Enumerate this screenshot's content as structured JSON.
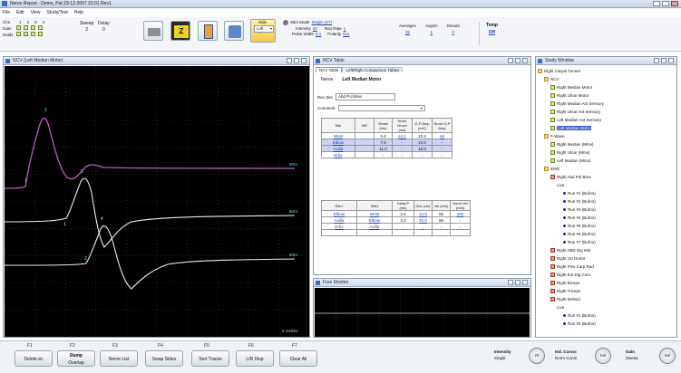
{
  "app": {
    "title": "Nerve Report - Demo, Pat 29-12-2007 22:01 Rev1"
  },
  "menu": [
    "File",
    "Edit",
    "View",
    "Study/Test",
    "Help"
  ],
  "top_controls": {
    "rows": [
      {
        "label": "Chn",
        "values": [
          "1",
          "2",
          "3",
          "4"
        ]
      },
      {
        "label": "Gain",
        "values": [
          "",
          "",
          "",
          ""
        ]
      },
      {
        "label": "Holds",
        "values": [
          "",
          "",
          "",
          ""
        ]
      }
    ],
    "sweep": {
      "label": "Sweep",
      "value": "2"
    },
    "delay": {
      "label": "Delay",
      "value": "0"
    },
    "side": {
      "label": "Side",
      "value": "Left"
    },
    "stim_mode": {
      "label": "Stim Mode",
      "value": "Single (ST)"
    },
    "intensity": {
      "label": "Intensity",
      "value": "20"
    },
    "pulse_width": {
      "label": "Pulse Width",
      "value": "0.1"
    },
    "rep_rate": {
      "label": "Rep Rate",
      "value": "1"
    },
    "polarity": {
      "label": "Polarity",
      "value": "Nor"
    },
    "averages": {
      "label": "Averages",
      "value": "32"
    },
    "avg_on": {
      "label": "AvgOn",
      "value": "1"
    },
    "should": {
      "label": "Should",
      "value": "0"
    },
    "temp": {
      "label": "Temp",
      "value": "Off"
    },
    "top_resize_btn": "Top Res"
  },
  "ncv_window": {
    "title": "NCV (Left Median Motor)",
    "traces": [
      {
        "label": "Wrist",
        "color": "#c05ac0"
      },
      {
        "label": "Elbow",
        "color": "#ffffff"
      },
      {
        "label": "Axilla",
        "color": "#ffffff"
      }
    ],
    "trace_labels_right": [
      "5mV",
      "5mV",
      "5mV"
    ],
    "marker_labels": [
      "1",
      "2",
      "3",
      "4"
    ],
    "timebase": "5 ms/Div",
    "colors": {
      "background": "#000000",
      "grid": "#3a3a3a",
      "wrist": "#c05ac0",
      "other": "#e8e8e8",
      "marker": "#66ffcc"
    }
  },
  "ncv_table": {
    "title": "NCV Table",
    "tabs": [
      "NCV Table",
      "Left/Right Comparison Tables"
    ],
    "nerve_label": "Nerve",
    "nerve_value": "Left Median Motor",
    "rec_site_label": "Rec Site",
    "rec_site_value": "Abd Pol Brev",
    "comment_label": "Comment",
    "comment_value": "",
    "table1": {
      "headers": [
        "Site",
        "NR",
        "Onset (ms)",
        "Norm Onset (ms)",
        "O-P Amp (mV)",
        "Norm O-P Amp"
      ],
      "rows": [
        [
          "Wrist",
          "",
          "3.4",
          "≤4.2",
          "10.2",
          "≥5"
        ],
        [
          "Elbow",
          "",
          "7.8",
          "-",
          "10.0",
          "-"
        ],
        [
          "Axilla",
          "",
          "11.0",
          "-",
          "10.0",
          "-"
        ],
        [
          "Erbs",
          "",
          "-",
          "-",
          "-",
          "-"
        ]
      ]
    },
    "table2": {
      "headers": [
        "Site1",
        "Site2",
        "Delta-P (ms)",
        "Dist (cm)",
        "Vel (m/s)",
        "Norm Vel (m/s)"
      ],
      "rows": [
        [
          "Elbow",
          "Wrist",
          "4.4",
          "24.0",
          "55",
          "≥50"
        ],
        [
          "Axilla",
          "Elbow",
          "3.2",
          "21.0",
          "66",
          "-"
        ],
        [
          "Erbs",
          "Axilla",
          "-",
          "-",
          "-",
          "-"
        ],
        [
          "",
          "",
          "",
          "",
          "",
          ""
        ]
      ]
    }
  },
  "free_monitor": {
    "title": "Free Monitor"
  },
  "study_window": {
    "title": "Study Window",
    "tree": [
      {
        "level": 0,
        "icon": "folder",
        "label": "Right Carpal Tunnel"
      },
      {
        "level": 1,
        "icon": "folder",
        "label": "NCV"
      },
      {
        "level": 2,
        "icon": "green",
        "label": "Right Median Motor"
      },
      {
        "level": 2,
        "icon": "green",
        "label": "Right Ulnar Motor"
      },
      {
        "level": 2,
        "icon": "green",
        "label": "Right Median Ant Sensory"
      },
      {
        "level": 2,
        "icon": "green",
        "label": "Right Ulnar Ant Sensory"
      },
      {
        "level": 2,
        "icon": "green",
        "label": "Left Median Ant Sensory"
      },
      {
        "level": 2,
        "icon": "green",
        "label": "Left Median Motor",
        "selected": true
      },
      {
        "level": 1,
        "icon": "folder",
        "label": "F-Wave"
      },
      {
        "level": 2,
        "icon": "green",
        "label": "Right Median (Mmx)"
      },
      {
        "level": 2,
        "icon": "green",
        "label": "Right Ulnar (Mmx)"
      },
      {
        "level": 2,
        "icon": "green",
        "label": "Left Median (Mmx)"
      },
      {
        "level": 1,
        "icon": "folder",
        "label": "EMG"
      },
      {
        "level": 2,
        "icon": "red",
        "label": "Right Abd Pol Brev"
      },
      {
        "level": 3,
        "icon": "none",
        "label": "Live"
      },
      {
        "level": 4,
        "icon": "bullet",
        "label": "Run #1 (BufAs)"
      },
      {
        "level": 4,
        "icon": "bullet",
        "label": "Run #2 (BufAs)"
      },
      {
        "level": 4,
        "icon": "bullet",
        "label": "Run #3 (BufAs)"
      },
      {
        "level": 4,
        "icon": "bullet",
        "label": "Run #4 (BufAs)"
      },
      {
        "level": 4,
        "icon": "bullet",
        "label": "Run #5 (BufAs)"
      },
      {
        "level": 4,
        "icon": "bullet",
        "label": "Run #6 (BufAs)"
      },
      {
        "level": 4,
        "icon": "bullet",
        "label": "Run #7 (BufAs)"
      },
      {
        "level": 2,
        "icon": "red",
        "label": "Right ABD Dig Min"
      },
      {
        "level": 2,
        "icon": "red",
        "label": "Right 1st DorInt"
      },
      {
        "level": 2,
        "icon": "red",
        "label": "Right Flex Carp Rad"
      },
      {
        "level": 2,
        "icon": "red",
        "label": "Right Ext Dig Com"
      },
      {
        "level": 2,
        "icon": "red",
        "label": "Right Biceps"
      },
      {
        "level": 2,
        "icon": "red",
        "label": "Right Triceps"
      },
      {
        "level": 2,
        "icon": "red",
        "label": "Right Deltoid"
      },
      {
        "level": 3,
        "icon": "none",
        "label": "Live"
      },
      {
        "level": 4,
        "icon": "bullet",
        "label": "Run #1 (BufAs)"
      },
      {
        "level": 4,
        "icon": "bullet",
        "label": "Run #2 (BufAs)"
      }
    ]
  },
  "footer": {
    "fkeys": [
      "F1",
      "F2",
      "F3",
      "F4",
      "F5",
      "F6",
      "F7"
    ],
    "buttons": [
      {
        "label": "Delete ec"
      },
      {
        "label": "Ramp Overlap",
        "top": "Ramp"
      },
      {
        "label": "Nerve List"
      },
      {
        "label": "Swap Sides"
      },
      {
        "label": "Sort Traces"
      },
      {
        "label": "L/R Disp"
      },
      {
        "label": "Clear All"
      }
    ],
    "intensity": {
      "label": "Intensity",
      "value": "Single",
      "knob": "20"
    },
    "ind_cursor": {
      "label": "Ind. Cursor",
      "value": "Norm Curve",
      "knob": "Sel"
    },
    "gain": {
      "label": "Gain",
      "value": "Sweep",
      "knob": "Sel"
    }
  }
}
